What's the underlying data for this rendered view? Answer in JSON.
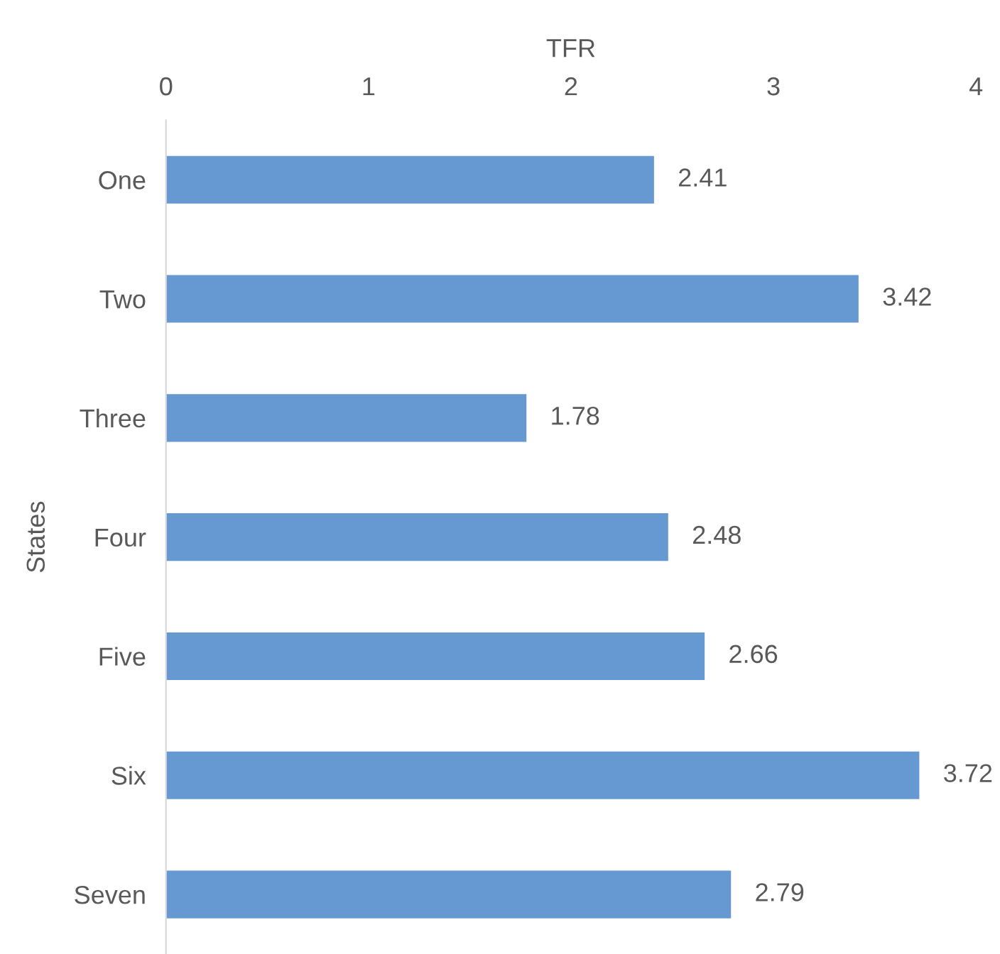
{
  "chart_data": {
    "type": "bar",
    "orientation": "horizontal",
    "xlabel": "TFR",
    "ylabel": "States",
    "categories": [
      "One",
      "Two",
      "Three",
      "Four",
      "Five",
      "Six",
      "Seven"
    ],
    "values": [
      2.41,
      3.42,
      1.78,
      2.48,
      2.66,
      3.72,
      2.79
    ],
    "color": "#6699d1",
    "xlim": [
      0,
      4
    ],
    "xticks": [
      0,
      1,
      2,
      3,
      4
    ],
    "data_labels": true,
    "grid": false
  }
}
